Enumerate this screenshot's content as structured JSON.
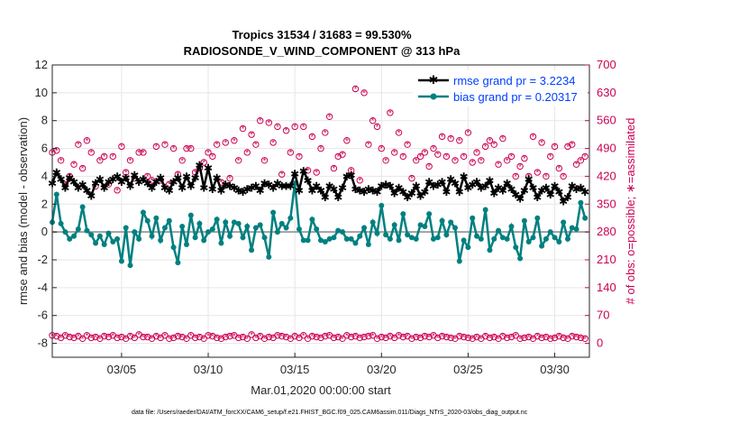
{
  "chart_data": {
    "type": "line",
    "title": "Tropics 31534 / 31683 = 99.530%",
    "subtitle": "RADIOSONDE_V_WIND_COMPONENT @ 313 hPa",
    "xlabel": "Mar.01,2020 00:00:00 start",
    "ylabel": "rmse and bias (model - observation)",
    "ylabel_right": "# of obs: o=possible; ∗=assimilated",
    "footnote": "data file: /Users/raeder/DAI/ATM_forcXX/CAM6_setup/f.e21.FHIST_BGC.f09_025.CAM6assim.011/Diags_NTrS_2020-03/obs_diag_output.nc",
    "xlim": [
      1,
      32
    ],
    "ylim": [
      -9,
      12
    ],
    "ylim_right": [
      -35,
      700
    ],
    "x_ticks": [
      5,
      10,
      15,
      20,
      25,
      30
    ],
    "x_tick_labels": [
      "03/05",
      "03/10",
      "03/15",
      "03/20",
      "03/25",
      "03/30"
    ],
    "y_ticks": [
      -8,
      -6,
      -4,
      -2,
      0,
      2,
      4,
      6,
      8,
      10,
      12
    ],
    "y_ticks_right": [
      0,
      70,
      140,
      210,
      280,
      350,
      420,
      490,
      560,
      630,
      700
    ],
    "grid": true,
    "legend_position": "top-right",
    "colors": {
      "rmse": "#000000",
      "bias": "#008080",
      "obs": "#cc0052",
      "zero": "#a0a0a0",
      "text_blue": "#0040ff"
    },
    "series": [
      {
        "name": "rmse grand pr = 3.2234",
        "x": [
          1.0,
          1.25,
          1.5,
          1.75,
          2.0,
          2.25,
          2.5,
          2.75,
          3.0,
          3.25,
          3.5,
          3.75,
          4.0,
          4.25,
          4.5,
          4.75,
          5.0,
          5.25,
          5.5,
          5.75,
          6.0,
          6.25,
          6.5,
          6.75,
          7.0,
          7.25,
          7.5,
          7.75,
          8.0,
          8.25,
          8.5,
          8.75,
          9.0,
          9.25,
          9.5,
          9.75,
          10.0,
          10.25,
          10.5,
          10.75,
          11.0,
          11.25,
          11.5,
          11.75,
          12.0,
          12.25,
          12.5,
          12.75,
          13.0,
          13.25,
          13.5,
          13.75,
          14.0,
          14.25,
          14.5,
          14.75,
          15.0,
          15.25,
          15.5,
          15.75,
          16.0,
          16.25,
          16.5,
          16.75,
          17.0,
          17.25,
          17.5,
          17.75,
          18.0,
          18.25,
          18.5,
          18.75,
          19.0,
          19.25,
          19.5,
          19.75,
          20.0,
          20.25,
          20.5,
          20.75,
          21.0,
          21.25,
          21.5,
          21.75,
          22.0,
          22.25,
          22.5,
          22.75,
          23.0,
          23.25,
          23.5,
          23.75,
          24.0,
          24.25,
          24.5,
          24.75,
          25.0,
          25.25,
          25.5,
          25.75,
          26.0,
          26.25,
          26.5,
          26.75,
          27.0,
          27.25,
          27.5,
          27.75,
          28.0,
          28.25,
          28.5,
          28.75,
          29.0,
          29.25,
          29.5,
          29.75,
          30.0,
          30.25,
          30.5,
          30.75,
          31.0,
          31.25,
          31.5,
          31.75
        ],
        "values": [
          3.5,
          4.3,
          3.8,
          3.2,
          3.9,
          3.6,
          3.2,
          3.4,
          3.0,
          2.6,
          3.5,
          3.8,
          3.2,
          3.6,
          3.8,
          4.0,
          3.6,
          3.9,
          3.3,
          4.1,
          3.6,
          3.8,
          3.5,
          3.2,
          3.6,
          3.9,
          3.2,
          3.0,
          3.6,
          3.9,
          3.2,
          4.0,
          3.3,
          3.9,
          4.8,
          3.2,
          4.6,
          3.1,
          3.9,
          3.0,
          3.4,
          3.3,
          3.2,
          3.0,
          2.9,
          3.1,
          3.2,
          3.3,
          3.0,
          3.5,
          3.4,
          3.2,
          3.5,
          3.3,
          3.3,
          3.3,
          4.2,
          3.0,
          4.4,
          3.7,
          3.0,
          3.3,
          3.0,
          2.5,
          3.3,
          3.1,
          2.5,
          3.2,
          4.0,
          4.1,
          3.1,
          3.0,
          2.9,
          3.1,
          3.0,
          2.9,
          3.3,
          3.4,
          3.3,
          2.8,
          3.2,
          2.9,
          2.5,
          2.8,
          3.3,
          2.6,
          2.9,
          3.6,
          3.3,
          3.4,
          3.6,
          2.9,
          3.8,
          3.5,
          2.9,
          4.0,
          3.2,
          3.4,
          3.6,
          3.2,
          3.3,
          3.7,
          2.8,
          3.2,
          3.0,
          3.5,
          3.1,
          2.7,
          2.4,
          3.0,
          3.8,
          3.2,
          2.5,
          3.0,
          3.2,
          2.7,
          3.3,
          2.9,
          2.2,
          2.5,
          3.3,
          3.1,
          3.2,
          2.9
        ]
      },
      {
        "name": "bias grand pr = 0.20317",
        "x": [
          1.0,
          1.25,
          1.5,
          1.75,
          2.0,
          2.25,
          2.5,
          2.75,
          3.0,
          3.25,
          3.5,
          3.75,
          4.0,
          4.25,
          4.5,
          4.75,
          5.0,
          5.25,
          5.5,
          5.75,
          6.0,
          6.25,
          6.5,
          6.75,
          7.0,
          7.25,
          7.5,
          7.75,
          8.0,
          8.25,
          8.5,
          8.75,
          9.0,
          9.25,
          9.5,
          9.75,
          10.0,
          10.25,
          10.5,
          10.75,
          11.0,
          11.25,
          11.5,
          11.75,
          12.0,
          12.25,
          12.5,
          12.75,
          13.0,
          13.25,
          13.5,
          13.75,
          14.0,
          14.25,
          14.5,
          14.75,
          15.0,
          15.25,
          15.5,
          15.75,
          16.0,
          16.25,
          16.5,
          16.75,
          17.0,
          17.25,
          17.5,
          17.75,
          18.0,
          18.25,
          18.5,
          18.75,
          19.0,
          19.25,
          19.5,
          19.75,
          20.0,
          20.25,
          20.5,
          20.75,
          21.0,
          21.25,
          21.5,
          21.75,
          22.0,
          22.25,
          22.5,
          22.75,
          23.0,
          23.25,
          23.5,
          23.75,
          24.0,
          24.25,
          24.5,
          24.75,
          25.0,
          25.25,
          25.5,
          25.75,
          26.0,
          26.25,
          26.5,
          26.75,
          27.0,
          27.25,
          27.5,
          27.75,
          28.0,
          28.25,
          28.5,
          28.75,
          29.0,
          29.25,
          29.5,
          29.75,
          30.0,
          30.25,
          30.5,
          30.75,
          31.0,
          31.25,
          31.5,
          31.75
        ],
        "values": [
          0.7,
          2.7,
          0.6,
          0.0,
          -0.5,
          -0.3,
          0.2,
          1.8,
          0.1,
          -0.2,
          -0.8,
          -0.3,
          -0.9,
          -0.1,
          -0.7,
          -0.5,
          -2.1,
          0.3,
          -2.4,
          0.0,
          -0.5,
          1.4,
          0.8,
          -0.3,
          1.0,
          -0.6,
          0.3,
          0.8,
          -1.1,
          -2.2,
          0.4,
          -0.9,
          1.2,
          -0.4,
          0.6,
          -0.6,
          0.0,
          0.2,
          0.9,
          -0.8,
          0.7,
          -0.3,
          0.7,
          0.6,
          -0.4,
          0.4,
          -1.3,
          0.3,
          0.5,
          -0.4,
          -1.8,
          1.4,
          0.0,
          0.6,
          0.3,
          1.0,
          3.5,
          0.2,
          -0.6,
          -0.6,
          0.9,
          0.2,
          -0.6,
          -0.7,
          -0.5,
          -0.4,
          0.1,
          0.0,
          -0.5,
          -0.5,
          -0.8,
          -0.3,
          0.3,
          -0.9,
          0.7,
          -0.1,
          1.9,
          -0.2,
          -0.5,
          0.5,
          -0.6,
          1.3,
          -0.2,
          -0.4,
          -0.5,
          0.5,
          0.4,
          1.3,
          -0.5,
          -0.4,
          0.8,
          -0.2,
          0.7,
          0.3,
          -2.1,
          -0.6,
          -1.1,
          1.0,
          -0.3,
          -0.5,
          1.6,
          -1.3,
          -0.5,
          0.1,
          -0.4,
          -0.5,
          0.4,
          -1.1,
          -1.9,
          0.8,
          -0.7,
          -0.4,
          1.0,
          -1.0,
          -0.5,
          0.0,
          -0.4,
          -0.7,
          0.7,
          -0.5,
          0.3,
          0.2,
          2.1,
          1.0
        ]
      }
    ],
    "obs_counts": {
      "x": [
        1.0,
        1.25,
        1.5,
        1.75,
        2.0,
        2.25,
        2.5,
        2.75,
        3.0,
        3.25,
        3.5,
        3.75,
        4.0,
        4.25,
        4.5,
        4.75,
        5.0,
        5.25,
        5.5,
        5.75,
        6.0,
        6.25,
        6.5,
        6.75,
        7.0,
        7.25,
        7.5,
        7.75,
        8.0,
        8.25,
        8.5,
        8.75,
        9.0,
        9.25,
        9.5,
        9.75,
        10.0,
        10.25,
        10.5,
        10.75,
        11.0,
        11.25,
        11.5,
        11.75,
        12.0,
        12.25,
        12.5,
        12.75,
        13.0,
        13.25,
        13.5,
        13.75,
        14.0,
        14.25,
        14.5,
        14.75,
        15.0,
        15.25,
        15.5,
        15.75,
        16.0,
        16.25,
        16.5,
        16.75,
        17.0,
        17.25,
        17.5,
        17.75,
        18.0,
        18.25,
        18.5,
        18.75,
        19.0,
        19.25,
        19.5,
        19.75,
        20.0,
        20.25,
        20.5,
        20.75,
        21.0,
        21.25,
        21.5,
        21.75,
        22.0,
        22.25,
        22.5,
        22.75,
        23.0,
        23.25,
        23.5,
        23.75,
        24.0,
        24.25,
        24.5,
        24.75,
        25.0,
        25.25,
        25.5,
        25.75,
        26.0,
        26.25,
        26.5,
        26.75,
        27.0,
        27.25,
        27.5,
        27.75,
        28.0,
        28.25,
        28.5,
        28.75,
        29.0,
        29.25,
        29.5,
        29.75,
        30.0,
        30.25,
        30.5,
        30.75,
        31.0,
        31.25,
        31.5,
        31.75
      ],
      "possible_large": [
        480,
        485,
        460,
        400,
        420,
        450,
        500,
        440,
        510,
        480,
        395,
        460,
        470,
        400,
        470,
        385,
        495,
        430,
        460,
        415,
        480,
        480,
        420,
        410,
        495,
        410,
        500,
        400,
        490,
        425,
        460,
        490,
        490,
        430,
        440,
        455,
        480,
        470,
        500,
        405,
        505,
        415,
        510,
        460,
        540,
        480,
        525,
        500,
        560,
        460,
        555,
        505,
        545,
        425,
        535,
        480,
        545,
        470,
        545,
        435,
        520,
        430,
        490,
        530,
        570,
        440,
        470,
        475,
        510,
        435,
        640,
        410,
        630,
        500,
        560,
        545,
        490,
        460,
        580,
        480,
        530,
        470,
        500,
        415,
        460,
        470,
        480,
        445,
        490,
        475,
        520,
        470,
        515,
        460,
        510,
        470,
        530,
        455,
        480,
        460,
        495,
        510,
        500,
        450,
        515,
        460,
        470,
        420,
        445,
        465,
        420,
        520,
        430,
        505,
        420,
        470,
        495,
        440,
        420,
        495,
        500,
        450,
        460,
        470,
        500,
        430,
        510,
        490
      ],
      "possible_small": [
        20,
        18,
        14,
        20,
        16,
        14,
        18,
        12,
        20,
        14,
        16,
        12,
        18,
        16,
        20,
        14,
        16,
        12,
        18,
        14,
        22,
        16,
        16,
        12,
        18,
        14,
        20,
        12,
        14,
        18,
        16,
        12,
        20,
        14,
        16,
        12,
        20,
        18,
        14,
        12,
        16,
        18,
        20,
        14,
        16,
        12,
        22,
        14,
        18,
        12,
        16,
        14,
        20,
        18,
        16,
        12,
        18,
        14,
        20,
        12,
        18,
        16,
        14,
        18,
        20,
        14,
        16,
        12,
        20,
        16,
        18,
        14,
        16,
        18,
        20,
        12,
        16,
        14,
        18,
        14,
        20,
        16,
        18,
        12,
        16,
        14,
        18,
        16,
        20,
        14,
        18,
        16,
        14,
        12,
        18,
        16,
        14,
        12,
        16,
        12,
        18,
        14,
        16,
        12,
        18,
        14,
        16,
        20,
        12,
        14,
        16,
        12,
        18,
        14,
        16,
        12,
        14,
        18,
        14,
        12,
        18,
        16,
        14,
        12,
        16,
        18,
        14,
        20
      ]
    },
    "text_blue_title_note": ""
  }
}
